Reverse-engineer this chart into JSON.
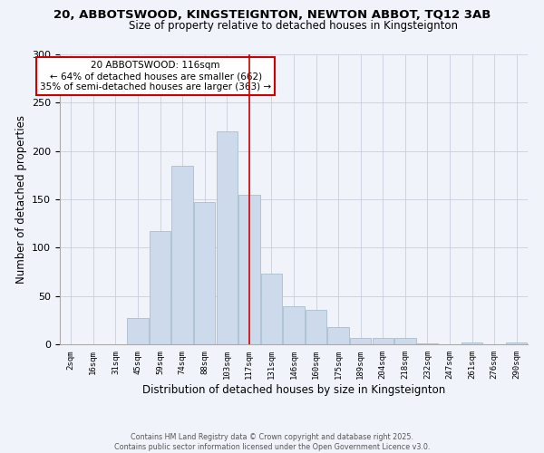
{
  "title": "20, ABBOTSWOOD, KINGSTEIGNTON, NEWTON ABBOT, TQ12 3AB",
  "subtitle": "Size of property relative to detached houses in Kingsteignton",
  "xlabel": "Distribution of detached houses by size in Kingsteignton",
  "ylabel": "Number of detached properties",
  "bar_labels": [
    "2sqm",
    "16sqm",
    "31sqm",
    "45sqm",
    "59sqm",
    "74sqm",
    "88sqm",
    "103sqm",
    "117sqm",
    "131sqm",
    "146sqm",
    "160sqm",
    "175sqm",
    "189sqm",
    "204sqm",
    "218sqm",
    "232sqm",
    "247sqm",
    "261sqm",
    "276sqm",
    "290sqm"
  ],
  "bar_values": [
    0,
    0,
    0,
    27,
    117,
    185,
    147,
    220,
    155,
    73,
    39,
    36,
    18,
    7,
    7,
    7,
    1,
    0,
    2,
    0,
    2
  ],
  "bar_color": "#ccdaeb",
  "bar_edge_color": "#a8becd",
  "vline_x": 8,
  "vline_color": "#cc0000",
  "annotation_title": "20 ABBOTSWOOD: 116sqm",
  "annotation_line1": "← 64% of detached houses are smaller (662)",
  "annotation_line2": "35% of semi-detached houses are larger (363) →",
  "ylim": [
    0,
    300
  ],
  "yticks": [
    0,
    50,
    100,
    150,
    200,
    250,
    300
  ],
  "footer1": "Contains HM Land Registry data © Crown copyright and database right 2025.",
  "footer2": "Contains public sector information licensed under the Open Government Licence v3.0.",
  "bg_color": "#f0f4fa",
  "grid_color": "#c8d0dc"
}
